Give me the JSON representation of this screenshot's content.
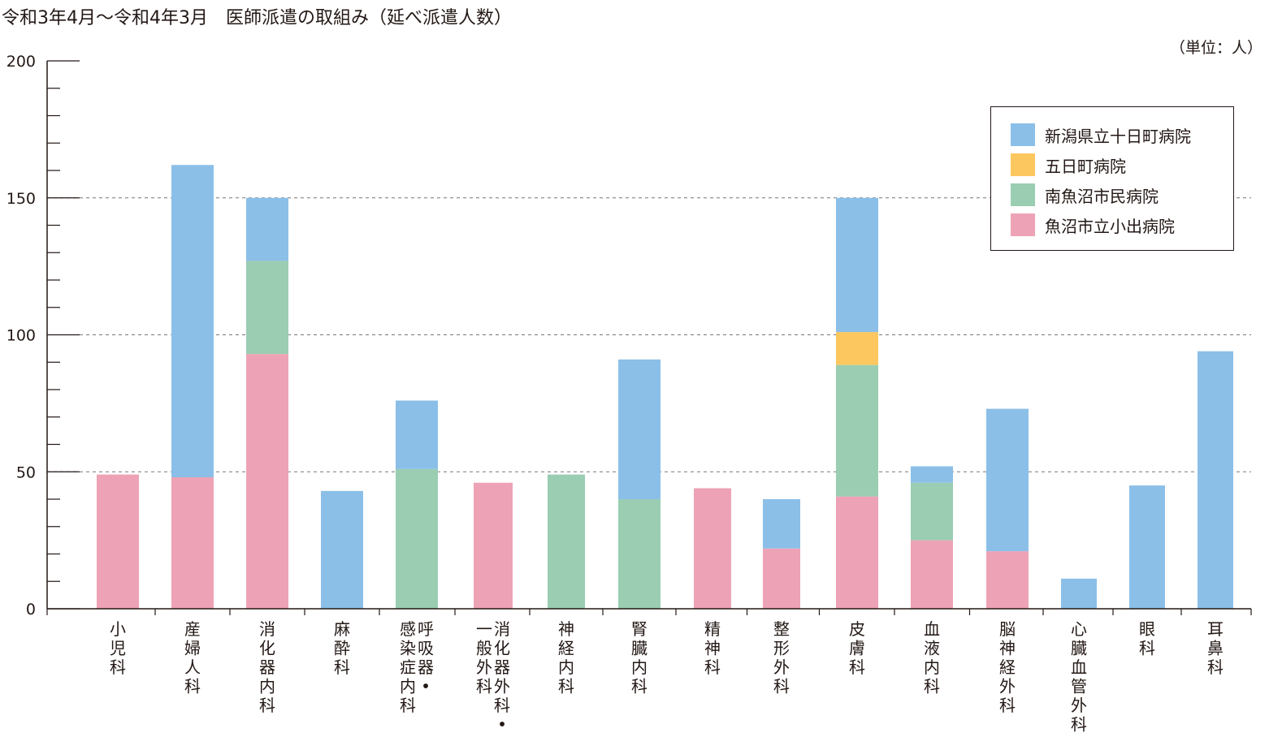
{
  "title": "令和3年4月～令和4年3月　医師派遣の取組み（延べ派遣人数）",
  "unit_label": "（単位：人）",
  "chart_data": {
    "type": "bar",
    "stacked": true,
    "title": "令和3年4月～令和4年3月　医師派遣の取組み（延べ派遣人数）",
    "ylim": [
      0,
      200
    ],
    "yticks": [
      "0",
      "50",
      "100",
      "150",
      "200"
    ],
    "gridlines_at": [
      50,
      100,
      150
    ],
    "legend_position": "top-right",
    "categories": [
      "小児科",
      "産婦人科",
      "消化器内科",
      "麻酔科",
      "呼吸器・感染症内科",
      "消化器外科・一般外科",
      "神経内科",
      "腎臓内科",
      "精神科",
      "整形外科",
      "皮膚科",
      "血液内科",
      "脳神経外科",
      "心臓血管外科",
      "眼科",
      "耳鼻科"
    ],
    "category_columns": [
      [
        "小児科"
      ],
      [
        "産婦人科"
      ],
      [
        "消化器内科"
      ],
      [
        "麻酔科"
      ],
      [
        "呼吸器・",
        "感染症内科"
      ],
      [
        "消化器外科・",
        "一般外科"
      ],
      [
        "神経内科"
      ],
      [
        "腎臓内科"
      ],
      [
        "精神科"
      ],
      [
        "整形外科"
      ],
      [
        "皮膚科"
      ],
      [
        "血液内科"
      ],
      [
        "脳神経外科"
      ],
      [
        "心臓血管外科"
      ],
      [
        "眼科"
      ],
      [
        "耳鼻科"
      ]
    ],
    "series": [
      {
        "name": "魚沼市立小出病院",
        "color": "#eda3b5",
        "values": [
          49,
          48,
          93,
          0,
          0,
          46,
          0,
          0,
          44,
          22,
          41,
          25,
          21,
          0,
          0,
          0
        ]
      },
      {
        "name": "南魚沼市民病院",
        "color": "#9acdb2",
        "values": [
          0,
          0,
          34,
          0,
          51,
          0,
          49,
          40,
          0,
          0,
          48,
          21,
          0,
          0,
          0,
          0
        ]
      },
      {
        "name": "五日町病院",
        "color": "#fdc75f",
        "values": [
          0,
          0,
          0,
          0,
          0,
          0,
          0,
          0,
          0,
          0,
          12,
          0,
          0,
          0,
          0,
          0
        ]
      },
      {
        "name": "新潟県立十日町病院",
        "color": "#8bbfe8",
        "values": [
          0,
          114,
          23,
          43,
          25,
          0,
          0,
          51,
          0,
          18,
          49,
          6,
          52,
          11,
          45,
          94
        ]
      }
    ],
    "legend_order": [
      "新潟県立十日町病院",
      "五日町病院",
      "南魚沼市民病院",
      "魚沼市立小出病院"
    ]
  }
}
